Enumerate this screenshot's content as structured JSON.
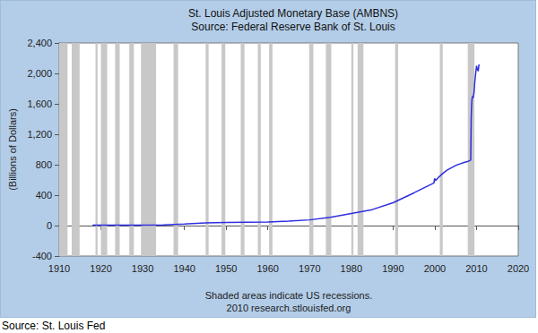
{
  "chart_data": {
    "type": "line",
    "title": "St. Louis Adjusted Monetary Base (AMBNS)",
    "subtitle": "Source: Federal Reserve Bank of St. Louis",
    "ylabel": "(Billions of Dollars)",
    "annotations": [
      "Shaded areas indicate US recessions.",
      "2010 research.stlouisfed.org"
    ],
    "source": "Source: St. Louis Fed",
    "x": [
      1918,
      1920,
      1925,
      1930,
      1935,
      1940,
      1945,
      1950,
      1955,
      1960,
      1965,
      1970,
      1975,
      1980,
      1985,
      1990,
      1995,
      1999.8,
      1999.95,
      2000.2,
      2001,
      2002,
      2003,
      2004,
      2005,
      2006,
      2007,
      2008,
      2008.6,
      2008.72,
      2008.8,
      2008.9,
      2009.0,
      2009.2,
      2009.4,
      2009.6,
      2009.8,
      2010.0,
      2010.2,
      2010.4,
      2010.5,
      2010.6
    ],
    "values": [
      6,
      7,
      7,
      7,
      10,
      20,
      35,
      40,
      45,
      48,
      58,
      75,
      110,
      160,
      210,
      300,
      430,
      560,
      620,
      590,
      640,
      690,
      730,
      760,
      790,
      810,
      830,
      845,
      860,
      1400,
      1550,
      1650,
      1700,
      1680,
      1750,
      1900,
      2000,
      2100,
      2050,
      2030,
      2080,
      2120
    ],
    "color": "#2e2ee0",
    "line_style": "solid",
    "xlim": [
      1910,
      2020
    ],
    "xticks": [
      1910,
      1920,
      1930,
      1940,
      1950,
      1960,
      1970,
      1980,
      1990,
      2000,
      2010,
      2020
    ],
    "ylim": [
      -400,
      2400
    ],
    "yticks": [
      -400,
      0,
      400,
      800,
      {
        "value": 1200,
        "label": "1,200"
      },
      {
        "value": 1600,
        "label": "1,600"
      },
      {
        "value": 2000,
        "label": "2,000"
      },
      {
        "value": 2400,
        "label": "2,400"
      }
    ],
    "recessions": [
      [
        1910.0,
        1912.0
      ],
      [
        1913.0,
        1914.9
      ],
      [
        1918.7,
        1919.2
      ],
      [
        1920.0,
        1921.5
      ],
      [
        1923.4,
        1924.5
      ],
      [
        1926.8,
        1927.9
      ],
      [
        1929.6,
        1933.2
      ],
      [
        1937.4,
        1938.5
      ],
      [
        1945.1,
        1945.8
      ],
      [
        1948.9,
        1949.8
      ],
      [
        1953.5,
        1954.4
      ],
      [
        1957.6,
        1958.3
      ],
      [
        1960.3,
        1961.1
      ],
      [
        1969.9,
        1970.9
      ],
      [
        1973.9,
        1975.2
      ],
      [
        1980.0,
        1980.5
      ],
      [
        1981.5,
        1982.9
      ],
      [
        1990.5,
        1991.2
      ],
      [
        2001.2,
        2001.9
      ],
      [
        2007.9,
        2009.5
      ]
    ],
    "grid": false
  }
}
